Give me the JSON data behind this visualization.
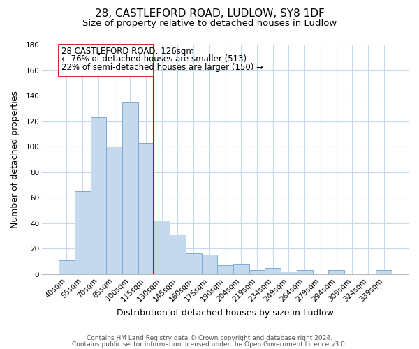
{
  "title": "28, CASTLEFORD ROAD, LUDLOW, SY8 1DF",
  "subtitle": "Size of property relative to detached houses in Ludlow",
  "xlabel": "Distribution of detached houses by size in Ludlow",
  "ylabel": "Number of detached properties",
  "bar_labels": [
    "40sqm",
    "55sqm",
    "70sqm",
    "85sqm",
    "100sqm",
    "115sqm",
    "130sqm",
    "145sqm",
    "160sqm",
    "175sqm",
    "190sqm",
    "204sqm",
    "219sqm",
    "234sqm",
    "249sqm",
    "264sqm",
    "279sqm",
    "294sqm",
    "309sqm",
    "324sqm",
    "339sqm"
  ],
  "bar_values": [
    11,
    65,
    123,
    100,
    135,
    103,
    42,
    31,
    16,
    15,
    7,
    8,
    3,
    5,
    2,
    3,
    0,
    3,
    0,
    0,
    3
  ],
  "bar_color": "#c5d9ee",
  "bar_edge_color": "#7aadd4",
  "ylim": [
    0,
    180
  ],
  "yticks": [
    0,
    20,
    40,
    60,
    80,
    100,
    120,
    140,
    160,
    180
  ],
  "ref_bar_index": 6,
  "reference_line_color": "#cc0000",
  "annotation_title": "28 CASTLEFORD ROAD: 126sqm",
  "annotation_line1": "← 76% of detached houses are smaller (513)",
  "annotation_line2": "22% of semi-detached houses are larger (150) →",
  "annotation_box_color": "#ffffff",
  "annotation_box_edge_color": "#cc0000",
  "footer1": "Contains HM Land Registry data © Crown copyright and database right 2024.",
  "footer2": "Contains public sector information licensed under the Open Government Licence v3.0.",
  "background_color": "#ffffff",
  "grid_color": "#c8d8ea",
  "title_fontsize": 11,
  "subtitle_fontsize": 9.5,
  "xlabel_fontsize": 9,
  "ylabel_fontsize": 9,
  "tick_fontsize": 7.5,
  "footer_fontsize": 6.5,
  "annotation_fontsize": 8.5
}
